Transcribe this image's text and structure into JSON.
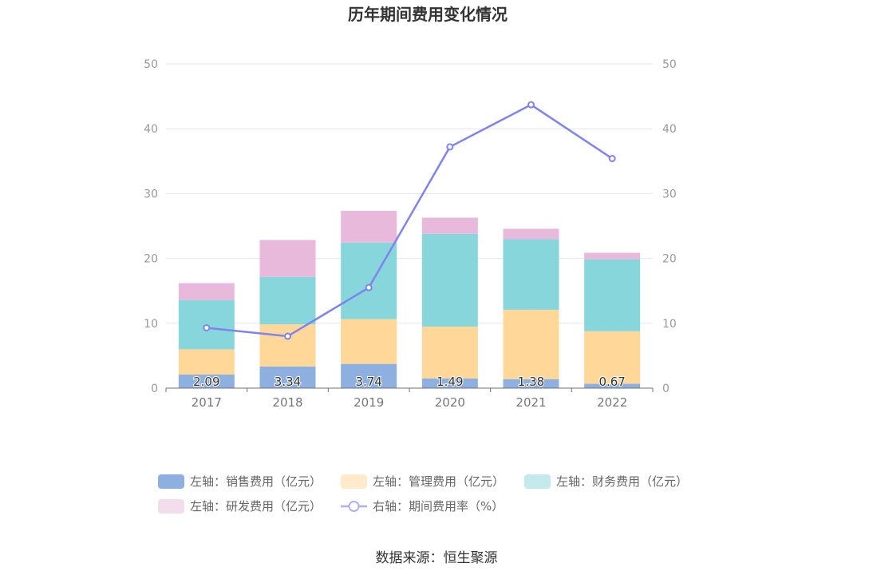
{
  "chart_data": {
    "type": "bar",
    "title": "历年期间费用变化情况",
    "categories": [
      "2017",
      "2018",
      "2019",
      "2020",
      "2021",
      "2022"
    ],
    "stacked": true,
    "y_left": {
      "ylim": [
        0,
        50
      ],
      "ticks": [
        0,
        10,
        20,
        30,
        40,
        50
      ]
    },
    "y_right": {
      "ylim": [
        0,
        50
      ],
      "ticks": [
        0,
        10,
        20,
        30,
        40,
        50
      ]
    },
    "grid": true,
    "legend_position": "bottom",
    "series": [
      {
        "name": "左轴：销售费用（亿元）",
        "type": "bar",
        "axis": "left",
        "color": "#8eb0e0",
        "values": [
          2.09,
          3.34,
          3.74,
          1.49,
          1.38,
          0.67
        ],
        "show_labels": true
      },
      {
        "name": "左轴：管理费用（亿元）",
        "type": "bar",
        "axis": "left",
        "color": "#ffd899",
        "values": [
          3.9,
          6.5,
          6.9,
          8.0,
          10.7,
          8.1
        ]
      },
      {
        "name": "左轴：财务费用（亿元）",
        "type": "bar",
        "axis": "left",
        "color": "#86d6db",
        "values": [
          7.6,
          7.3,
          11.8,
          14.3,
          10.9,
          11.1
        ]
      },
      {
        "name": "左轴：研发费用（亿元）",
        "type": "bar",
        "axis": "left",
        "color": "#e8b9da",
        "values": [
          2.6,
          5.7,
          4.9,
          2.5,
          1.6,
          1.0
        ]
      },
      {
        "name": "右轴：期间费用率（%）",
        "type": "line",
        "axis": "right",
        "color": "#7f83f0",
        "values": [
          9.3,
          8.0,
          15.5,
          37.2,
          43.7,
          35.4
        ]
      }
    ]
  },
  "source_label": "数据来源：恒生聚源"
}
